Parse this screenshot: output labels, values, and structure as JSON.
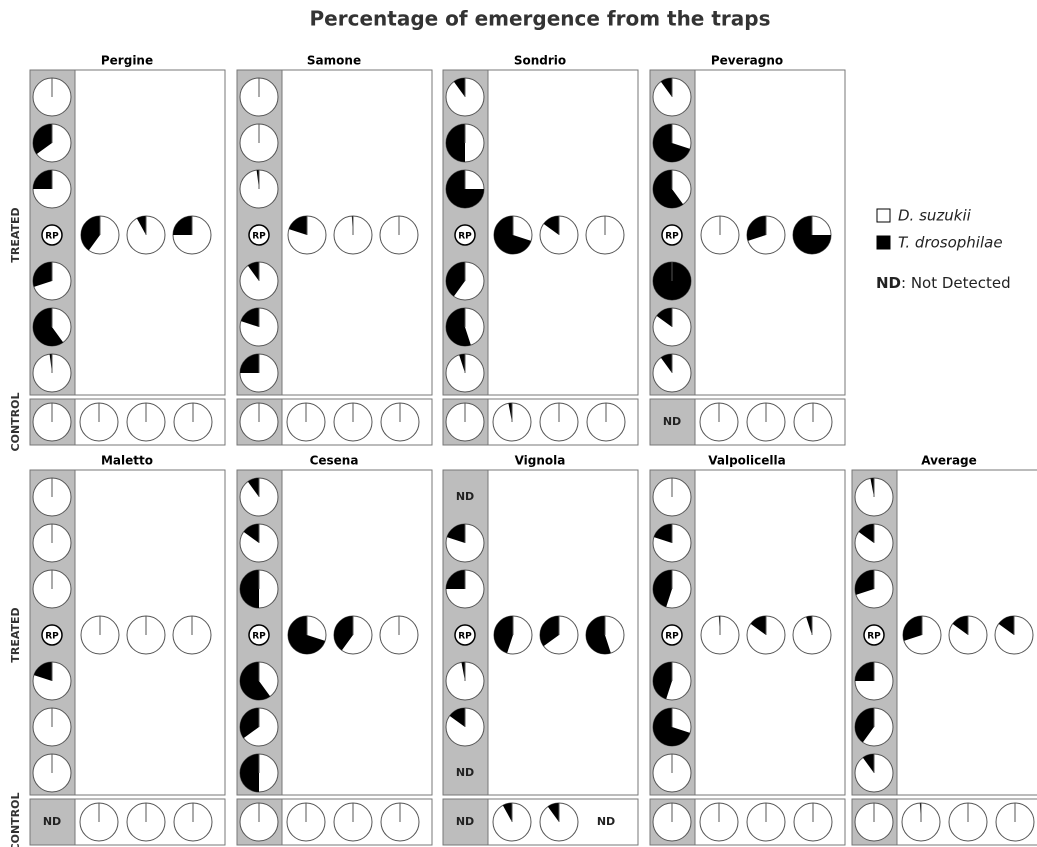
{
  "chart_data": {
    "type": "pie",
    "title": "Percentage of emergence from the traps",
    "row_labels": [
      "TREATED",
      "CONTROL"
    ],
    "series": [
      {
        "name": "D. suzukii",
        "color": "#ffffff"
      },
      {
        "name": "T. drosophilae",
        "color": "#000000"
      }
    ],
    "note": {
      "abbr": "ND",
      "text": ": Not Detected"
    },
    "panels": [
      {
        "name": "Pergine",
        "column": [
          0,
          35,
          25,
          "RP",
          30,
          60,
          2
        ],
        "row": [
          40,
          8,
          25
        ],
        "control": [
          0,
          0,
          0,
          0
        ]
      },
      {
        "name": "Samone",
        "column": [
          0,
          0,
          2,
          "RP",
          10,
          20,
          25
        ],
        "row": [
          20,
          1,
          0
        ],
        "control": [
          0,
          0,
          0,
          0
        ]
      },
      {
        "name": "Sondrio",
        "column": [
          10,
          50,
          75,
          "RP",
          40,
          55,
          5
        ],
        "row": [
          70,
          15,
          0
        ],
        "control": [
          0,
          3,
          0,
          0
        ]
      },
      {
        "name": "Peveragno",
        "column": [
          10,
          70,
          60,
          "RP",
          100,
          15,
          10
        ],
        "row": [
          0,
          30,
          75
        ],
        "control": [
          "ND",
          0,
          0,
          0
        ]
      },
      {
        "name": "Maletto",
        "column": [
          0,
          0,
          0,
          "RP",
          20,
          0,
          0
        ],
        "row": [
          0,
          0,
          0
        ],
        "control": [
          "ND",
          0,
          0,
          0
        ]
      },
      {
        "name": "Cesena",
        "column": [
          10,
          15,
          50,
          "RP",
          60,
          35,
          50
        ],
        "row": [
          70,
          40,
          0
        ],
        "control": [
          0,
          0,
          0,
          0
        ]
      },
      {
        "name": "Vignola",
        "column": [
          "ND",
          20,
          25,
          "RP",
          3,
          15,
          "ND"
        ],
        "row": [
          45,
          35,
          55
        ],
        "control": [
          "ND",
          8,
          10,
          "ND"
        ]
      },
      {
        "name": "Valpolicella",
        "column": [
          0,
          20,
          45,
          "RP",
          45,
          70,
          0
        ],
        "row": [
          1,
          15,
          5
        ],
        "control": [
          0,
          0,
          0,
          0
        ]
      },
      {
        "name": "Average",
        "column": [
          3,
          15,
          30,
          "RP",
          25,
          40,
          10
        ],
        "row": [
          30,
          15,
          15
        ],
        "control": [
          0,
          1,
          0,
          0
        ]
      }
    ]
  }
}
